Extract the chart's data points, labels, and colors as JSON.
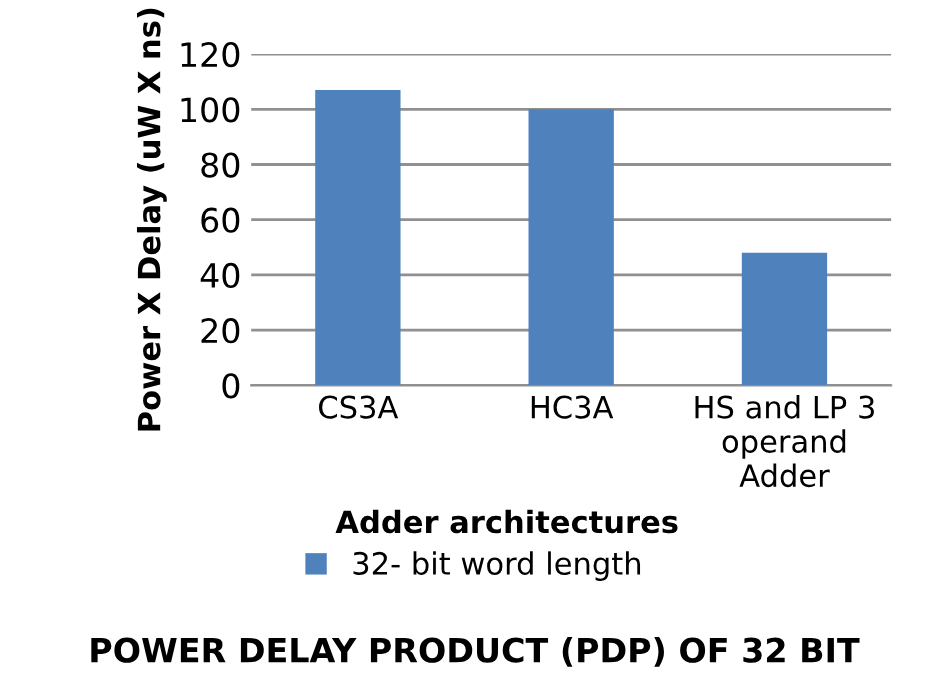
{
  "chart_data": {
    "type": "bar",
    "xlabel": "Adder architectures",
    "ylabel": "Power X Delay (uW X ns)",
    "categories": [
      "CS3A",
      "HC3A",
      "HS and LP 3\noperand\nAdder"
    ],
    "series": [
      {
        "name": "32- bit word length",
        "color": "#4f81bd",
        "values": [
          107,
          100,
          48
        ]
      }
    ],
    "ylim": [
      0,
      120
    ],
    "yticks": [
      0,
      20,
      40,
      60,
      80,
      100,
      120
    ],
    "grid": "y",
    "legend": "bottom",
    "annotations": [
      "POWER DELAY PRODUCT (PDP) OF 32 BIT"
    ]
  }
}
